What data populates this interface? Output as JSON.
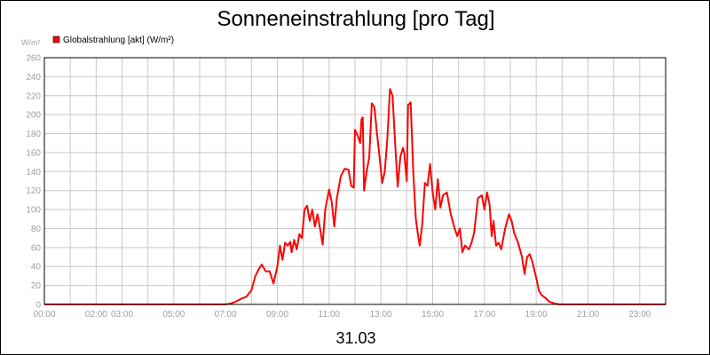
{
  "chart_data": {
    "type": "line",
    "title": "Sonneneinstrahlung [pro Tag]",
    "ylabel": "W/m²",
    "xlabel": "31.03",
    "ylim": [
      0,
      260
    ],
    "xlim_hours": [
      0,
      24
    ],
    "grid": true,
    "legend_placement": "top-left",
    "y_ticks": [
      "0",
      "20",
      "40",
      "60",
      "80",
      "100",
      "120",
      "140",
      "160",
      "180",
      "200",
      "220",
      "240",
      "260"
    ],
    "x_ticks": [
      {
        "h": 0,
        "label": "00:00"
      },
      {
        "h": 2,
        "label": "02:00"
      },
      {
        "h": 3,
        "label": "03:00"
      },
      {
        "h": 5,
        "label": "05:00"
      },
      {
        "h": 7,
        "label": "07:00"
      },
      {
        "h": 9,
        "label": "09:00"
      },
      {
        "h": 11,
        "label": "11:00"
      },
      {
        "h": 13,
        "label": "13:00"
      },
      {
        "h": 15,
        "label": "15:00"
      },
      {
        "h": 17,
        "label": "17:00"
      },
      {
        "h": 19,
        "label": "19:00"
      },
      {
        "h": 21,
        "label": "21:00"
      },
      {
        "h": 23,
        "label": "23:00"
      }
    ],
    "series": [
      {
        "name": "Globalstrahlung [akt] (W/m²)",
        "color": "#ff0000",
        "points": [
          [
            0,
            0
          ],
          [
            7.0,
            0
          ],
          [
            7.2,
            1
          ],
          [
            7.4,
            3
          ],
          [
            7.6,
            6
          ],
          [
            7.8,
            8
          ],
          [
            8.0,
            15
          ],
          [
            8.15,
            30
          ],
          [
            8.3,
            38
          ],
          [
            8.4,
            42
          ],
          [
            8.55,
            35
          ],
          [
            8.7,
            35
          ],
          [
            8.85,
            22
          ],
          [
            9.0,
            40
          ],
          [
            9.1,
            62
          ],
          [
            9.2,
            47
          ],
          [
            9.3,
            65
          ],
          [
            9.4,
            62
          ],
          [
            9.5,
            66
          ],
          [
            9.55,
            55
          ],
          [
            9.65,
            68
          ],
          [
            9.75,
            58
          ],
          [
            9.85,
            74
          ],
          [
            9.95,
            70
          ],
          [
            10.05,
            100
          ],
          [
            10.15,
            104
          ],
          [
            10.25,
            88
          ],
          [
            10.35,
            100
          ],
          [
            10.45,
            82
          ],
          [
            10.55,
            95
          ],
          [
            10.65,
            80
          ],
          [
            10.75,
            63
          ],
          [
            10.85,
            100
          ],
          [
            11.0,
            121
          ],
          [
            11.1,
            108
          ],
          [
            11.2,
            82
          ],
          [
            11.3,
            112
          ],
          [
            11.45,
            135
          ],
          [
            11.6,
            143
          ],
          [
            11.75,
            142
          ],
          [
            11.85,
            125
          ],
          [
            11.95,
            123
          ],
          [
            12.0,
            184
          ],
          [
            12.1,
            178
          ],
          [
            12.2,
            170
          ],
          [
            12.25,
            195
          ],
          [
            12.3,
            197
          ],
          [
            12.35,
            120
          ],
          [
            12.45,
            140
          ],
          [
            12.55,
            155
          ],
          [
            12.65,
            212
          ],
          [
            12.75,
            208
          ],
          [
            12.85,
            180
          ],
          [
            12.95,
            155
          ],
          [
            13.05,
            128
          ],
          [
            13.15,
            140
          ],
          [
            13.25,
            175
          ],
          [
            13.35,
            227
          ],
          [
            13.45,
            220
          ],
          [
            13.55,
            170
          ],
          [
            13.65,
            124
          ],
          [
            13.75,
            155
          ],
          [
            13.85,
            165
          ],
          [
            13.9,
            160
          ],
          [
            14.0,
            130
          ],
          [
            14.05,
            210
          ],
          [
            14.15,
            213
          ],
          [
            14.25,
            140
          ],
          [
            14.35,
            90
          ],
          [
            14.45,
            70
          ],
          [
            14.5,
            62
          ],
          [
            14.6,
            85
          ],
          [
            14.7,
            128
          ],
          [
            14.8,
            125
          ],
          [
            14.9,
            148
          ],
          [
            15.0,
            118
          ],
          [
            15.1,
            100
          ],
          [
            15.2,
            132
          ],
          [
            15.3,
            102
          ],
          [
            15.4,
            115
          ],
          [
            15.55,
            118
          ],
          [
            15.7,
            95
          ],
          [
            15.85,
            80
          ],
          [
            15.95,
            72
          ],
          [
            16.05,
            80
          ],
          [
            16.15,
            55
          ],
          [
            16.25,
            62
          ],
          [
            16.4,
            58
          ],
          [
            16.5,
            65
          ],
          [
            16.6,
            75
          ],
          [
            16.75,
            112
          ],
          [
            16.9,
            115
          ],
          [
            17.0,
            100
          ],
          [
            17.1,
            118
          ],
          [
            17.2,
            105
          ],
          [
            17.28,
            72
          ],
          [
            17.35,
            88
          ],
          [
            17.45,
            62
          ],
          [
            17.55,
            65
          ],
          [
            17.65,
            58
          ],
          [
            17.8,
            80
          ],
          [
            17.95,
            95
          ],
          [
            18.05,
            88
          ],
          [
            18.15,
            75
          ],
          [
            18.3,
            65
          ],
          [
            18.45,
            50
          ],
          [
            18.55,
            32
          ],
          [
            18.65,
            50
          ],
          [
            18.75,
            53
          ],
          [
            18.85,
            45
          ],
          [
            19.0,
            28
          ],
          [
            19.1,
            15
          ],
          [
            19.2,
            10
          ],
          [
            19.35,
            7
          ],
          [
            19.5,
            3
          ],
          [
            19.7,
            1
          ],
          [
            19.9,
            0
          ],
          [
            24,
            0
          ]
        ]
      }
    ]
  }
}
